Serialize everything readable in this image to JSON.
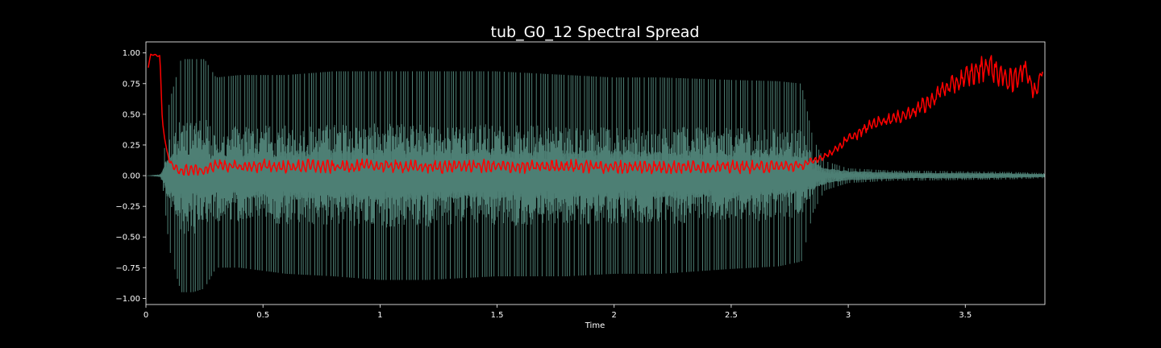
{
  "chart_data": {
    "type": "line",
    "title": "tub_G0_12 Spectral Spread",
    "xlabel": "Time",
    "ylabel": "",
    "xlim": [
      0,
      3.84
    ],
    "ylim": [
      -1.05,
      1.09
    ],
    "x_ticks": [
      {
        "value": 0,
        "label": "0"
      },
      {
        "value": 0.5,
        "label": "0.5"
      },
      {
        "value": 1,
        "label": "1"
      },
      {
        "value": 1.5,
        "label": "1.5"
      },
      {
        "value": 2,
        "label": "2"
      },
      {
        "value": 2.5,
        "label": "2.5"
      },
      {
        "value": 3,
        "label": "3"
      },
      {
        "value": 3.5,
        "label": "3.5"
      }
    ],
    "y_ticks": [
      {
        "value": 1.0,
        "label": "1.00"
      },
      {
        "value": 0.75,
        "label": "0.75"
      },
      {
        "value": 0.5,
        "label": "0.50"
      },
      {
        "value": 0.25,
        "label": "0.25"
      },
      {
        "value": 0.0,
        "label": "0.00"
      },
      {
        "value": -0.25,
        "label": "−0.25"
      },
      {
        "value": -0.5,
        "label": "−0.50"
      },
      {
        "value": -0.75,
        "label": "−0.75"
      },
      {
        "value": -1.0,
        "label": "−1.00"
      }
    ],
    "grid": false,
    "colors": {
      "background": "#000000",
      "waveform": "#4e7f74",
      "spectral_spread": "#ff0000",
      "axes": "#ffffff"
    },
    "series": [
      {
        "role": "waveform",
        "style": "filled-envelope",
        "x": [
          0,
          0.06,
          0.07,
          0.1,
          0.15,
          0.2,
          0.25,
          0.3,
          0.4,
          0.6,
          0.8,
          1.0,
          1.2,
          1.5,
          1.8,
          2.0,
          2.2,
          2.5,
          2.7,
          2.8,
          2.85,
          2.9,
          3.0,
          3.1,
          3.2,
          3.3,
          3.5,
          3.7,
          3.84
        ],
        "upper": [
          0,
          0.01,
          0.05,
          0.6,
          0.95,
          0.95,
          0.95,
          0.8,
          0.82,
          0.82,
          0.85,
          0.85,
          0.85,
          0.85,
          0.82,
          0.8,
          0.8,
          0.78,
          0.77,
          0.75,
          0.3,
          0.12,
          0.06,
          0.05,
          0.04,
          0.04,
          0.035,
          0.03,
          0.02
        ],
        "lower": [
          0,
          -0.01,
          -0.05,
          -0.6,
          -0.95,
          -0.95,
          -0.92,
          -0.75,
          -0.75,
          -0.8,
          -0.82,
          -0.85,
          -0.85,
          -0.82,
          -0.82,
          -0.8,
          -0.8,
          -0.76,
          -0.74,
          -0.7,
          -0.3,
          -0.12,
          -0.06,
          -0.05,
          -0.04,
          -0.04,
          -0.035,
          -0.03,
          -0.02
        ],
        "core_upper": [
          0,
          0.01,
          0.04,
          0.17,
          0.2,
          0.17,
          0.16,
          0.19,
          0.2,
          0.2,
          0.21,
          0.22,
          0.21,
          0.21,
          0.22,
          0.21,
          0.2,
          0.2,
          0.18,
          0.16,
          0.12,
          0.07,
          0.04,
          0.035,
          0.03,
          0.025,
          0.025,
          0.02,
          0.015
        ],
        "core_lower": [
          0,
          -0.01,
          -0.04,
          -0.17,
          -0.2,
          -0.17,
          -0.16,
          -0.17,
          -0.18,
          -0.2,
          -0.2,
          -0.2,
          -0.2,
          -0.2,
          -0.2,
          -0.2,
          -0.2,
          -0.19,
          -0.17,
          -0.15,
          -0.12,
          -0.07,
          -0.04,
          -0.035,
          -0.03,
          -0.025,
          -0.025,
          -0.02,
          -0.015
        ]
      },
      {
        "role": "spectral-spread",
        "x": [
          0.01,
          0.02,
          0.03,
          0.04,
          0.05,
          0.06,
          0.065,
          0.07,
          0.08,
          0.09,
          0.1,
          0.12,
          0.15,
          0.2,
          0.25,
          0.3,
          0.4,
          0.5,
          0.6,
          0.7,
          0.8,
          0.9,
          1.0,
          1.2,
          1.4,
          1.6,
          1.8,
          2.0,
          2.2,
          2.4,
          2.6,
          2.8,
          2.85,
          2.9,
          2.95,
          3.0,
          3.05,
          3.1,
          3.15,
          3.2,
          3.25,
          3.3,
          3.35,
          3.4,
          3.45,
          3.5,
          3.55,
          3.6,
          3.65,
          3.7,
          3.75,
          3.8,
          3.83
        ],
        "y": [
          0.88,
          0.99,
          0.98,
          0.99,
          0.97,
          0.98,
          0.7,
          0.45,
          0.3,
          0.2,
          0.12,
          0.06,
          0.04,
          0.05,
          0.04,
          0.09,
          0.07,
          0.08,
          0.07,
          0.08,
          0.07,
          0.08,
          0.08,
          0.07,
          0.08,
          0.07,
          0.08,
          0.07,
          0.07,
          0.07,
          0.07,
          0.08,
          0.12,
          0.16,
          0.22,
          0.3,
          0.35,
          0.42,
          0.45,
          0.47,
          0.5,
          0.55,
          0.6,
          0.7,
          0.74,
          0.8,
          0.85,
          0.9,
          0.82,
          0.76,
          0.88,
          0.68,
          0.87
        ],
        "jitter": [
          0,
          0,
          0,
          0,
          0,
          0,
          0,
          0,
          0,
          0,
          0.02,
          0.04,
          0.05,
          0.05,
          0.05,
          0.05,
          0.06,
          0.06,
          0.06,
          0.06,
          0.06,
          0.06,
          0.06,
          0.06,
          0.06,
          0.06,
          0.06,
          0.06,
          0.06,
          0.06,
          0.06,
          0.05,
          0.03,
          0.03,
          0.04,
          0.05,
          0.05,
          0.05,
          0.05,
          0.06,
          0.06,
          0.07,
          0.08,
          0.08,
          0.09,
          0.1,
          0.12,
          0.12,
          0.12,
          0.12,
          0.12,
          0.1,
          0.06
        ]
      }
    ]
  }
}
